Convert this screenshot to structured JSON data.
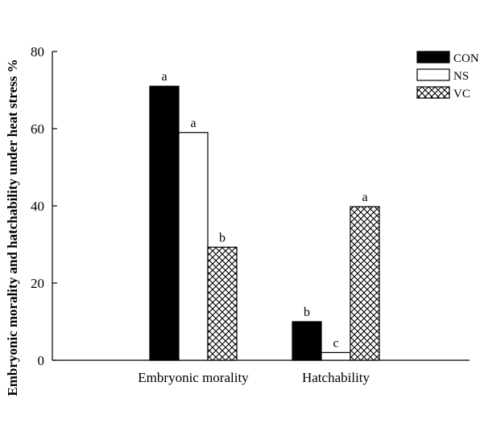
{
  "chart_data": {
    "type": "bar",
    "ylabel": "Embryonic morality and hatchability under heat stress %",
    "xlabel": "",
    "ylim": [
      0,
      80
    ],
    "yticks": [
      0,
      20,
      40,
      60,
      80
    ],
    "categories": [
      "Embryonic morality",
      "Hatchability"
    ],
    "series": [
      {
        "name": "CON",
        "values": [
          71,
          10
        ],
        "letters": [
          "a",
          "b"
        ],
        "pattern": "solid-black"
      },
      {
        "name": "NS",
        "values": [
          59,
          2
        ],
        "letters": [
          "a",
          "c"
        ],
        "pattern": "white"
      },
      {
        "name": "VC",
        "values": [
          29.3,
          39.8
        ],
        "letters": [
          "b",
          "a"
        ],
        "pattern": "crosshatch"
      }
    ],
    "legend": {
      "position": "top-right"
    },
    "grid": false
  }
}
